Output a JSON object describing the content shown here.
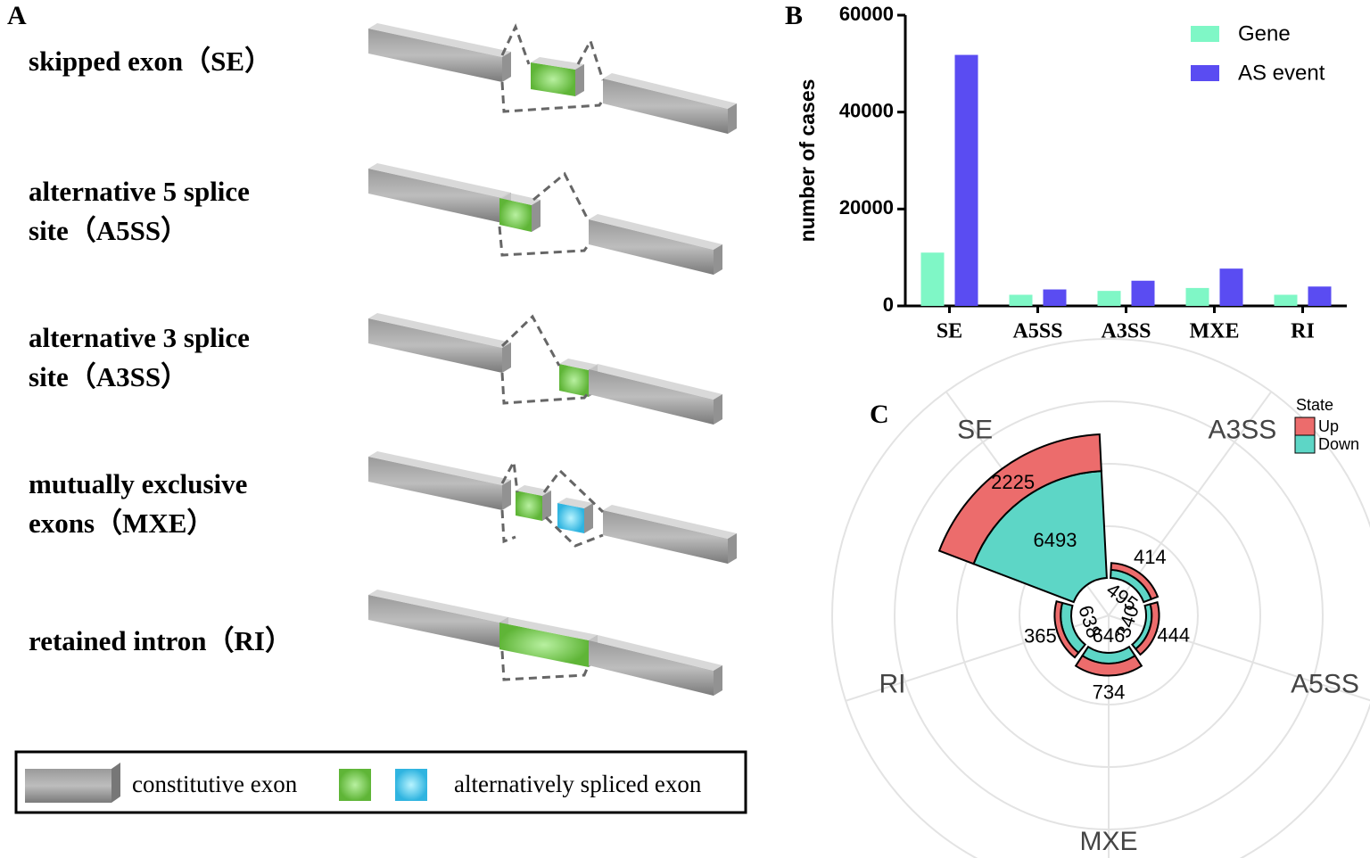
{
  "panel_labels": [
    "A",
    "B",
    "C"
  ],
  "splicing_types": [
    [
      "skipped exon（SE）"
    ],
    [
      "alternative 5 splice",
      "site（A5SS）"
    ],
    [
      "alternative 3 splice",
      "site（A3SS）"
    ],
    [
      "mutually exclusive",
      "exons（MXE）"
    ],
    [
      "retained intron（RI）"
    ]
  ],
  "exon_legend": [
    "constitutive exon",
    "alternatively spliced exon"
  ],
  "chart_data": [
    {
      "type": "bar",
      "ylabel": "number of cases",
      "categories": [
        "SE",
        "A5SS",
        "A3SS",
        "MXE",
        "RI"
      ],
      "series": [
        {
          "name": "Gene",
          "color": "#7ff7c6",
          "values": [
            11000,
            2300,
            3100,
            3700,
            2300
          ]
        },
        {
          "name": "AS event",
          "color": "#5a4cf2",
          "values": [
            51800,
            3400,
            5200,
            7700,
            4000
          ]
        }
      ],
      "ylim": [
        0,
        60000
      ],
      "yticks": [
        0,
        20000,
        40000,
        60000
      ],
      "legend": "upper right"
    },
    {
      "type": "polar_bar",
      "legend_title": "State",
      "categories": [
        "SE",
        "A3SS",
        "A5SS",
        "MXE",
        "RI"
      ],
      "series": [
        {
          "name": "Up",
          "color": "#ec6c6c",
          "values": [
            2225,
            414,
            444,
            734,
            365
          ]
        },
        {
          "name": "Down",
          "color": "#5dd6c6",
          "values": [
            6493,
            495,
            340,
            646,
            638
          ]
        }
      ]
    }
  ]
}
